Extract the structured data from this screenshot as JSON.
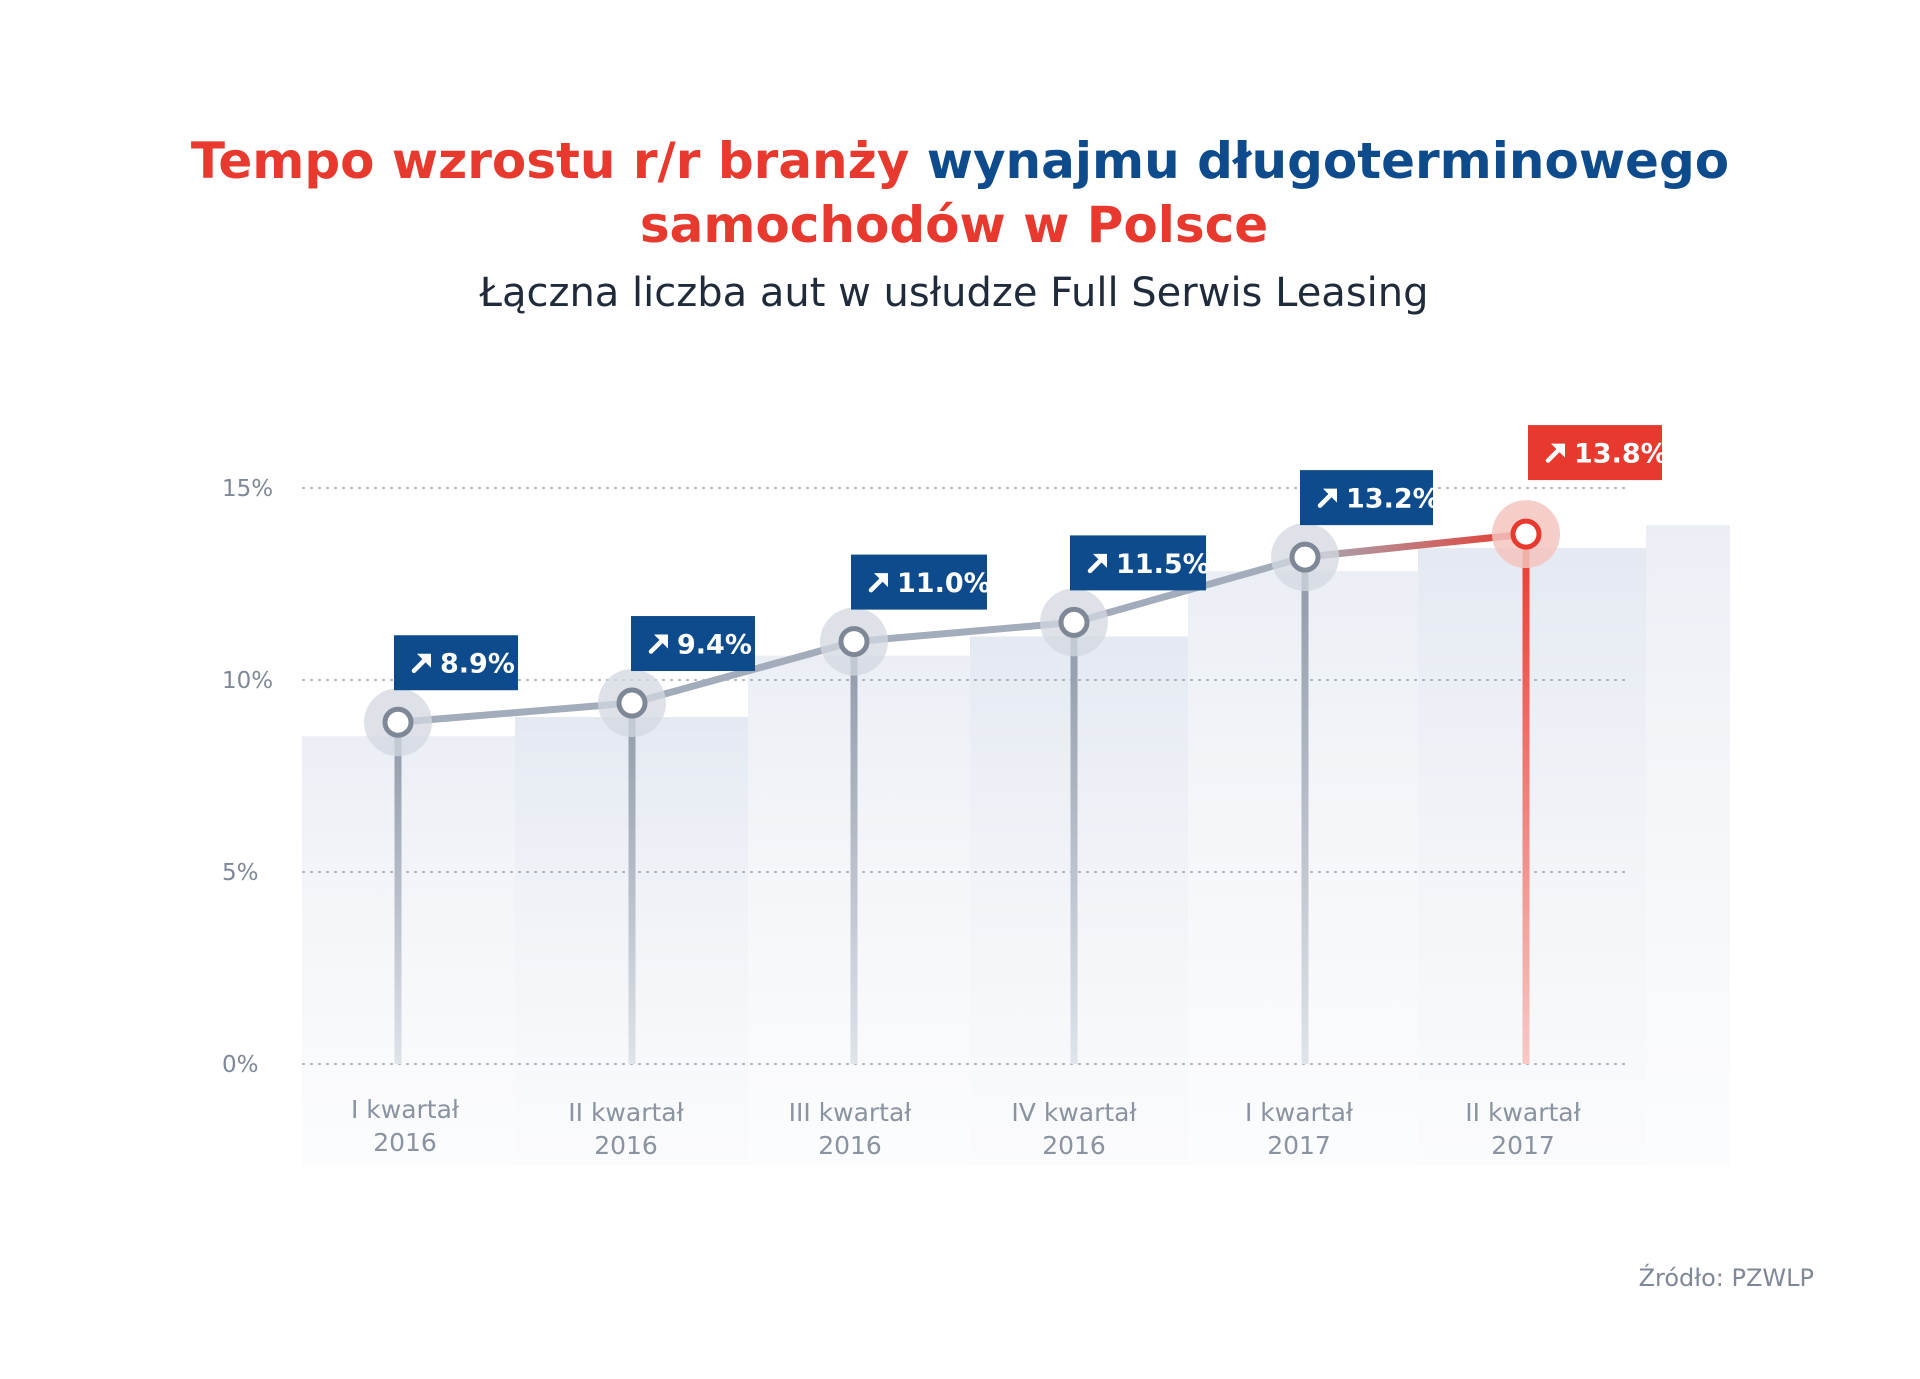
{
  "title": {
    "part1": "Tempo wzrostu r/r branży ",
    "part2": "wynajmu długoterminowego",
    "line2": "samochodów w Polsce"
  },
  "subtitle": "Łączna liczba aut w usłudze Full Serwis Leasing",
  "source": "Źródło: PZWLP",
  "colors": {
    "title_red": "#e8392e",
    "title_blue": "#0d4b8c",
    "badge_blue": "#0d4b8c",
    "badge_red": "#e8392e",
    "line_gray": "#a3acba",
    "highlight_red": "#e8392e"
  },
  "chart_data": {
    "type": "line",
    "categories": [
      [
        "I kwartał",
        "2016"
      ],
      [
        "II kwartał",
        "2016"
      ],
      [
        "III kwartał",
        "2016"
      ],
      [
        "IV kwartał",
        "2016"
      ],
      [
        "I kwartał",
        "2017"
      ],
      [
        "II kwartał",
        "2017"
      ]
    ],
    "values": [
      8.9,
      9.4,
      11.0,
      11.5,
      13.2,
      13.8
    ],
    "labels": [
      "8.9%",
      "9.4%",
      "11.0%",
      "11.5%",
      "13.2%",
      "13.8%"
    ],
    "highlight_index": 5,
    "ylim": [
      0,
      15
    ],
    "yticks": [
      0,
      5,
      10,
      15
    ],
    "ytick_labels": [
      "0%",
      "5%",
      "10%",
      "15%"
    ],
    "grid": true,
    "xlabel": "",
    "ylabel": ""
  }
}
